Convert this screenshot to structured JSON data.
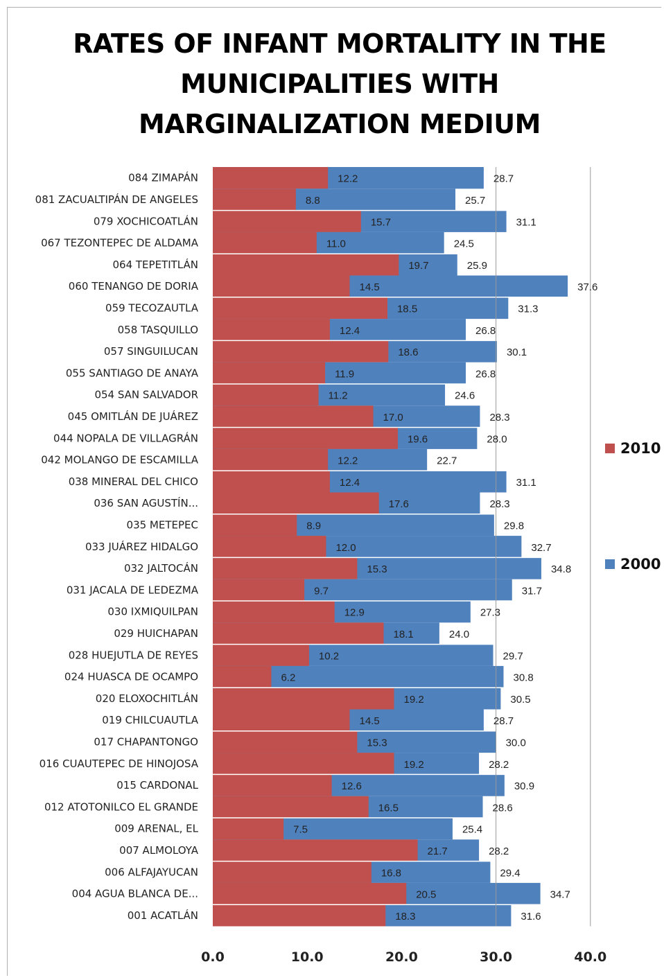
{
  "chart_data": {
    "type": "bar",
    "orientation": "horizontal",
    "title_lines": [
      "RATES OF INFANT MORTALITY IN THE",
      "MUNICIPALITIES WITH",
      "MARGINALIZATION MEDIUM"
    ],
    "xlim": [
      0,
      40
    ],
    "xticks": [
      "0.0",
      "10.0",
      "20.0",
      "30.0",
      "40.0"
    ],
    "legend": {
      "position": "right"
    },
    "colors": {
      "2010": "#c0504d",
      "2000": "#4f81bd"
    },
    "categories": [
      "084  ZIMAPÁN",
      "081  ZACUALTIPÁN DE ANGELES",
      "079  XOCHICOATLÁN",
      "067  TEZONTEPEC DE ALDAMA",
      "064  TEPETITLÁN",
      "060  TENANGO DE DORIA",
      "059  TECOZAUTLA",
      "058  TASQUILLO",
      "057  SINGUILUCAN",
      "055  SANTIAGO DE ANAYA",
      "054  SAN SALVADOR",
      "045  OMITLÁN DE JUÁREZ",
      "044  NOPALA DE VILLAGRÁN",
      "042  MOLANGO DE ESCAMILLA",
      "038  MINERAL DEL CHICO",
      "036  SAN AGUSTÍN...",
      "035  METEPEC",
      "033  JUÁREZ HIDALGO",
      "032  JALTOCÁN",
      "031  JACALA DE LEDEZMA",
      "030  IXMIQUILPAN",
      "029  HUICHAPAN",
      "028  HUEJUTLA DE REYES",
      "024  HUASCA DE OCAMPO",
      "020  ELOXOCHITLÁN",
      "019  CHILCUAUTLA",
      "017  CHAPANTONGO",
      "016  CUAUTEPEC DE HINOJOSA",
      "015  CARDONAL",
      "012  ATOTONILCO EL GRANDE",
      "009  ARENAL, EL",
      "007  ALMOLOYA",
      "006  ALFAJAYUCAN",
      "004  AGUA BLANCA DE...",
      "001  ACATLÁN"
    ],
    "series": [
      {
        "name": "2010",
        "values": [
          12.2,
          8.8,
          15.7,
          11.0,
          19.7,
          14.5,
          18.5,
          12.4,
          18.6,
          11.9,
          11.2,
          17.0,
          19.6,
          12.2,
          12.4,
          17.6,
          8.9,
          12.0,
          15.3,
          9.7,
          12.9,
          18.1,
          10.2,
          6.2,
          19.2,
          14.5,
          15.3,
          19.2,
          12.6,
          16.5,
          7.5,
          21.7,
          16.8,
          20.5,
          18.3
        ]
      },
      {
        "name": "2000",
        "values": [
          28.7,
          25.7,
          31.1,
          24.5,
          25.9,
          37.6,
          31.3,
          26.8,
          30.1,
          26.8,
          24.6,
          28.3,
          28.0,
          22.7,
          31.1,
          28.3,
          29.8,
          32.7,
          34.8,
          31.7,
          27.3,
          24.0,
          29.7,
          30.8,
          30.5,
          28.7,
          30.0,
          28.2,
          30.9,
          28.6,
          25.4,
          28.2,
          29.4,
          34.7,
          31.6
        ]
      }
    ],
    "value_labels": [
      [
        "12.2",
        "28.7"
      ],
      [
        "8.8",
        "25.7"
      ],
      [
        "15.7",
        "31.1"
      ],
      [
        "11.0",
        "24.5"
      ],
      [
        "19.7",
        "25.9"
      ],
      [
        "14.5",
        "37.6"
      ],
      [
        "18.5",
        "31.3"
      ],
      [
        "12.4",
        "26.8"
      ],
      [
        "18.6",
        "30.1"
      ],
      [
        "11.9",
        "26.8"
      ],
      [
        "11.2",
        "24.6"
      ],
      [
        "17.0",
        "28.3"
      ],
      [
        "19.6",
        "28.0"
      ],
      [
        "12.2",
        "22.7"
      ],
      [
        "12.4",
        "31.1"
      ],
      [
        "17.6",
        "28.3"
      ],
      [
        "8.9",
        "29.8"
      ],
      [
        "12.0",
        "32.7"
      ],
      [
        "15.3",
        "34.8"
      ],
      [
        "9.7",
        "31.7"
      ],
      [
        "12.9",
        "27.3"
      ],
      [
        "18.1",
        "24.0"
      ],
      [
        "10.2",
        "29.7"
      ],
      [
        "6.2",
        "30.8"
      ],
      [
        "19.2",
        "30.5"
      ],
      [
        "14.5",
        "28.7"
      ],
      [
        "15.3",
        "30.0"
      ],
      [
        "19.2",
        "28.2"
      ],
      [
        "12.6",
        "30.9"
      ],
      [
        "16.5",
        "28.6"
      ],
      [
        "7.5",
        "25.4"
      ],
      [
        "21.7",
        "28.2"
      ],
      [
        "16.8",
        "29.4"
      ],
      [
        "20.5",
        "34.7"
      ],
      [
        "18.3",
        "31.6"
      ]
    ]
  }
}
